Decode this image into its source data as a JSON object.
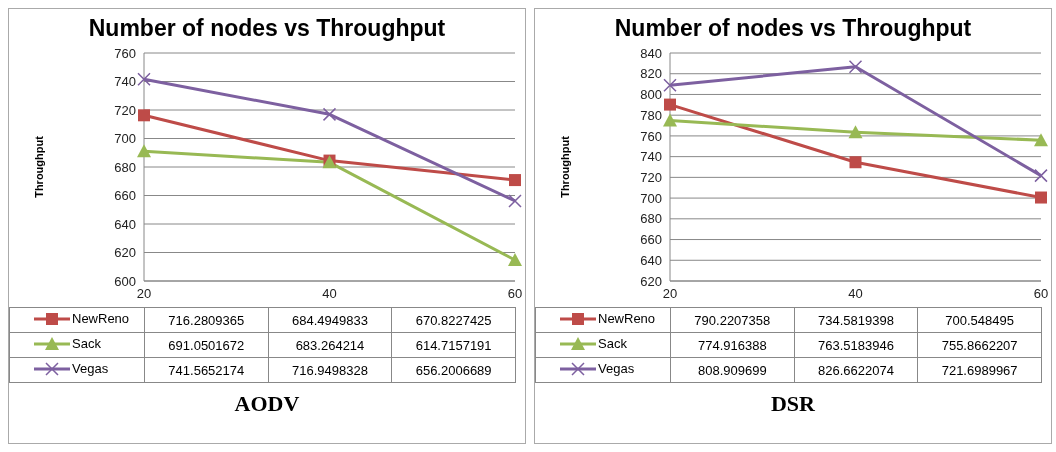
{
  "chart_data": [
    {
      "type": "line",
      "title": "Number of nodes vs Throughput",
      "ylabel": "Throughput",
      "categories": [
        "20",
        "40",
        "60"
      ],
      "ylim": [
        600,
        760
      ],
      "yticks": [
        600,
        620,
        640,
        660,
        680,
        700,
        720,
        740,
        760
      ],
      "grid": "y",
      "legend": "bottom",
      "data_labels": true,
      "annotations": [
        "AODV"
      ],
      "series": [
        {
          "name": "NewReno",
          "color": "#be4b48",
          "marker": "square",
          "values": [
            716.2809365,
            684.4949833,
            670.8227425
          ]
        },
        {
          "name": "Sack",
          "color": "#98b954",
          "marker": "triangle",
          "values": [
            691.0501672,
            683.264214,
            614.7157191
          ]
        },
        {
          "name": "Vegas",
          "color": "#7d60a0",
          "marker": "cross",
          "values": [
            741.5652174,
            716.9498328,
            656.2006689
          ]
        }
      ]
    },
    {
      "type": "line",
      "title": "Number of nodes vs Throughput",
      "ylabel": "Throughput",
      "categories": [
        "20",
        "40",
        "60"
      ],
      "ylim": [
        620,
        840
      ],
      "yticks": [
        620,
        640,
        660,
        680,
        700,
        720,
        740,
        760,
        780,
        800,
        820,
        840
      ],
      "grid": "y",
      "legend": "bottom",
      "data_labels": true,
      "annotations": [
        "DSR"
      ],
      "series": [
        {
          "name": "NewReno",
          "color": "#be4b48",
          "marker": "square",
          "values": [
            790.2207358,
            734.5819398,
            700.548495
          ]
        },
        {
          "name": "Sack",
          "color": "#98b954",
          "marker": "triangle",
          "values": [
            774.916388,
            763.5183946,
            755.8662207
          ]
        },
        {
          "name": "Vegas",
          "color": "#7d60a0",
          "marker": "cross",
          "values": [
            808.909699,
            826.6622074,
            721.6989967
          ]
        }
      ]
    }
  ]
}
